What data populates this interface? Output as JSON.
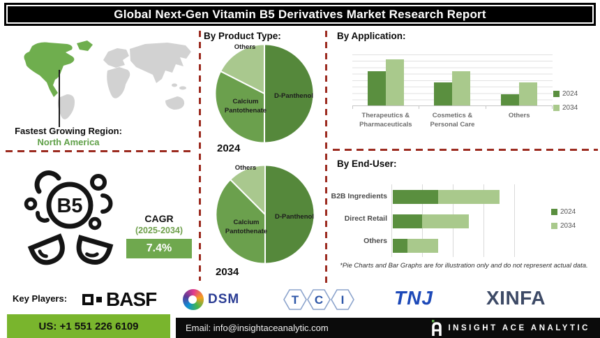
{
  "title": "Global Next-Gen Vitamin B5 Derivatives Market Research Report",
  "sections": {
    "product_type": "By Product Type:",
    "application": "By Application:",
    "end_user": "By End-User:"
  },
  "region": {
    "label": "Fastest Growing Region:",
    "value": "North America"
  },
  "b5_icon": {
    "text": "B5"
  },
  "cagr": {
    "label": "CAGR",
    "period": "(2025-2034)",
    "value": "7.4%"
  },
  "footnote": "*Pie Charts and Bar Graphs are for illustration only and do not represent actual data.",
  "key_players": {
    "label": "Key Players:",
    "items": [
      "BASF",
      "DSM",
      "TCI",
      "TNJ",
      "XINFA"
    ]
  },
  "footer": {
    "phone": "US: +1 551 226 6109",
    "email": "Email: info@insightaceanalytic.com",
    "brand": "INSIGHT ACE ANALYTIC"
  },
  "colors": {
    "pie_dark": "#55883b",
    "pie_mid": "#6ba04d",
    "pie_light": "#a9c88e",
    "series_2024": "#5a8f3f",
    "series_2034": "#a9c98c",
    "accent_green": "#70ad47",
    "cagr_box_green": "#6fa84e",
    "footer_green": "#79b52d",
    "divider_red": "#9c2b20",
    "map_highlight_green": "#6fae4e",
    "map_land_gray": "#d2d2d2"
  },
  "chart_data": [
    {
      "type": "pie",
      "title": "By Product Type - 2024",
      "year": "2024",
      "labels": [
        "D-Panthenol",
        "Calcium Pantothenate",
        "Others"
      ],
      "values": [
        50,
        32.5,
        17.5
      ],
      "note": "illustrative only"
    },
    {
      "type": "pie",
      "title": "By Product Type - 2034",
      "year": "2034",
      "labels": [
        "D-Panthenol",
        "Calcium Pantothenate",
        "Others"
      ],
      "values": [
        50,
        37.5,
        12.5
      ],
      "note": "illustrative only"
    },
    {
      "type": "bar",
      "title": "By Application",
      "categories": [
        "Therapeutics & Pharmaceuticals",
        "Cosmetics & Personal Care",
        "Others"
      ],
      "series": [
        {
          "name": "2024",
          "values": [
            66,
            44,
            21
          ]
        },
        {
          "name": "2034",
          "values": [
            89,
            66,
            44
          ]
        }
      ],
      "ylim": [
        0,
        100
      ],
      "grid": "horizontal",
      "legend_position": "right",
      "note": "illustrative only"
    },
    {
      "type": "bar",
      "subtype": "horizontal-stacked",
      "title": "By End-User",
      "categories": [
        "B2B Ingredients",
        "Direct Retail",
        "Others"
      ],
      "series": [
        {
          "name": "2024",
          "values": [
            37,
            24,
            12
          ]
        },
        {
          "name": "2034",
          "values": [
            50,
            38,
            25
          ]
        }
      ],
      "xlim": [
        0,
        100
      ],
      "grid": "vertical",
      "legend_position": "right",
      "note": "illustrative only"
    }
  ]
}
